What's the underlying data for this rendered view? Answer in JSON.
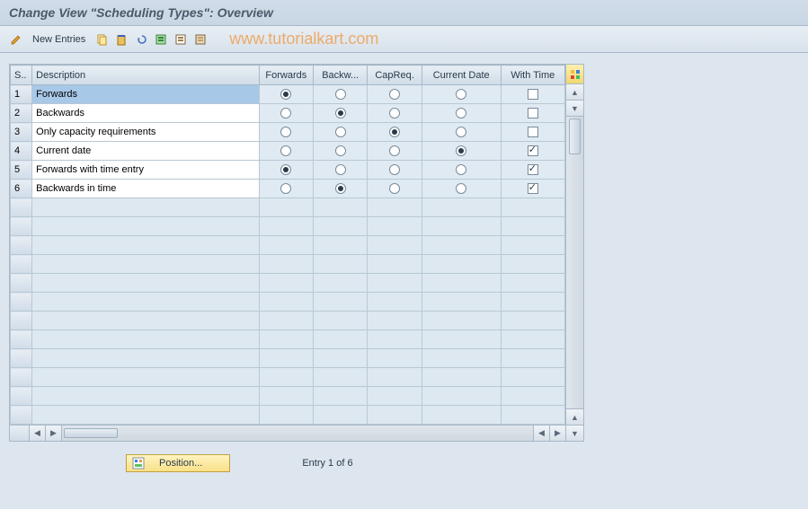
{
  "title": "Change View \"Scheduling Types\": Overview",
  "toolbar": {
    "new_entries": "New Entries"
  },
  "watermark": "www.tutorialkart.com",
  "columns": {
    "sel": "S..",
    "desc": "Description",
    "forwards": "Forwards",
    "backwards": "Backw...",
    "capreq": "CapReq.",
    "currentdate": "Current Date",
    "withtime": "With Time"
  },
  "rows": [
    {
      "num": "1",
      "desc": "Forwards",
      "selected": true,
      "fw": true,
      "bw": false,
      "cap": false,
      "cur": false,
      "wt": false
    },
    {
      "num": "2",
      "desc": "Backwards",
      "selected": false,
      "fw": false,
      "bw": true,
      "cap": false,
      "cur": false,
      "wt": false
    },
    {
      "num": "3",
      "desc": "Only capacity requirements",
      "selected": false,
      "fw": false,
      "bw": false,
      "cap": true,
      "cur": false,
      "wt": false
    },
    {
      "num": "4",
      "desc": "Current date",
      "selected": false,
      "fw": false,
      "bw": false,
      "cap": false,
      "cur": true,
      "wt": true
    },
    {
      "num": "5",
      "desc": "Forwards with time entry",
      "selected": false,
      "fw": true,
      "bw": false,
      "cap": false,
      "cur": false,
      "wt": true
    },
    {
      "num": "6",
      "desc": "Backwards in time",
      "selected": false,
      "fw": false,
      "bw": true,
      "cap": false,
      "cur": false,
      "wt": true
    }
  ],
  "empty_rows": 12,
  "footer": {
    "position_label": "Position...",
    "entry_text": "Entry 1 of 6"
  },
  "colors": {
    "bg": "#dde6ee",
    "header_grad_top": "#e8eef4",
    "header_grad_bot": "#d0dce8",
    "border": "#a8b8c8",
    "cell_bg": "#e0eaf2",
    "selected_bg": "#a8c8e8",
    "yellow_top": "#fff4c0",
    "yellow_bot": "#f8e088",
    "watermark": "#f0a050"
  }
}
